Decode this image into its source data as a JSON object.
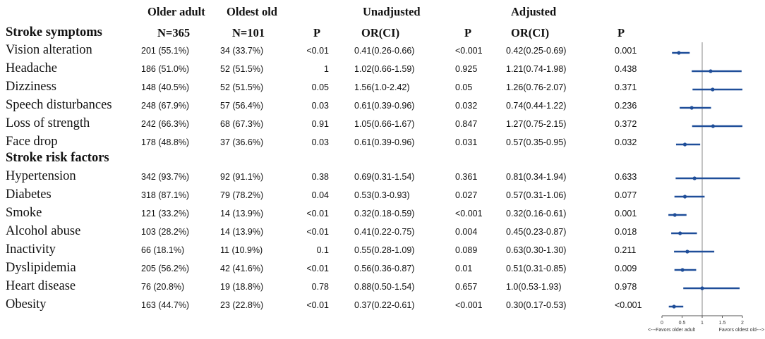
{
  "headers": {
    "older_adult": "Older adult",
    "oldest_old": "Oldest old",
    "unadjusted": "Unadjusted",
    "adjusted": "Adjusted",
    "n_older": "N=365",
    "n_oldest": "N=101",
    "p": "P",
    "or_ci": "OR(CI)",
    "p2": "P",
    "or_ci2": "OR(CI)",
    "p3": "P"
  },
  "sections": {
    "symptoms": "Stroke symptoms",
    "risk": "Stroke risk factors"
  },
  "rows": [
    {
      "label": "Vision alteration",
      "older": "201 (55.1%)",
      "oldest": "34 (33.7%)",
      "p": "<0.01",
      "or_u": "0.41(0.26-0.66)",
      "p_u": "<0.001",
      "or_a": "0.42(0.25-0.69)",
      "p_a": "0.001"
    },
    {
      "label": "Headache",
      "older": "186 (51.0%)",
      "oldest": "52 (51.5%)",
      "p": "1",
      "or_u": "1.02(0.66-1.59)",
      "p_u": "0.925",
      "or_a": "1.21(0.74-1.98)",
      "p_a": "0.438"
    },
    {
      "label": "Dizziness",
      "older": "148 (40.5%)",
      "oldest": "52 (51.5%)",
      "p": "0.05",
      "or_u": "1.56(1.0-2.42)",
      "p_u": "0.05",
      "or_a": "1.26(0.76-2.07)",
      "p_a": "0.371"
    },
    {
      "label": "Speech disturbances",
      "older": "248 (67.9%)",
      "oldest": "57 (56.4%)",
      "p": "0.03",
      "or_u": "0.61(0.39-0.96)",
      "p_u": "0.032",
      "or_a": "0.74(0.44-1.22)",
      "p_a": "0.236"
    },
    {
      "label": "Loss of strength",
      "older": "242 (66.3%)",
      "oldest": "68 (67.3%)",
      "p": "0.91",
      "or_u": "1.05(0.66-1.67)",
      "p_u": "0.847",
      "or_a": "1.27(0.75-2.15)",
      "p_a": "0.372"
    },
    {
      "label": "Face drop",
      "older": "178 (48.8%)",
      "oldest": "37 (36.6%)",
      "p": "0.03",
      "or_u": "0.61(0.39-0.96)",
      "p_u": "0.031",
      "or_a": "0.57(0.35-0.95)",
      "p_a": "0.032"
    },
    {
      "label": "Hypertension",
      "older": "342 (93.7%)",
      "oldest": "92 (91.1%)",
      "p": "0.38",
      "or_u": "0.69(0.31-1.54)",
      "p_u": "0.361",
      "or_a": "0.81(0.34-1.94)",
      "p_a": "0.633"
    },
    {
      "label": "Diabetes",
      "older": "318 (87.1%)",
      "oldest": "79 (78.2%)",
      "p": "0.04",
      "or_u": "0.53(0.3-0.93)",
      "p_u": "0.027",
      "or_a": "0.57(0.31-1.06)",
      "p_a": "0.077"
    },
    {
      "label": "Smoke",
      "older": "121 (33.2%)",
      "oldest": "14 (13.9%)",
      "p": "<0.01",
      "or_u": "0.32(0.18-0.59)",
      "p_u": "<0.001",
      "or_a": "0.32(0.16-0.61)",
      "p_a": "0.001"
    },
    {
      "label": "Alcohol abuse",
      "older": "103 (28.2%)",
      "oldest": "14 (13.9%)",
      "p": "<0.01",
      "or_u": "0.41(0.22-0.75)",
      "p_u": "0.004",
      "or_a": "0.45(0.23-0.87)",
      "p_a": "0.018"
    },
    {
      "label": "Inactivity",
      "older": "66 (18.1%)",
      "oldest": "11 (10.9%)",
      "p": "0.1",
      "or_u": "0.55(0.28-1.09)",
      "p_u": "0.089",
      "or_a": "0.63(0.30-1.30)",
      "p_a": "0.211"
    },
    {
      "label": "Dyslipidemia",
      "older": "205 (56.2%)",
      "oldest": "42 (41.6%)",
      "p": "<0.01",
      "or_u": "0.56(0.36-0.87)",
      "p_u": "0.01",
      "or_a": "0.51(0.31-0.85)",
      "p_a": "0.009"
    },
    {
      "label": "Heart disease",
      "older": "76 (20.8%)",
      "oldest": "19 (18.8%)",
      "p": "0.78",
      "or_u": "0.88(0.50-1.54)",
      "p_u": "0.657",
      "or_a": "1.0(0.53-1.93)",
      "p_a": "0.978"
    },
    {
      "label": "Obesity",
      "older": "163 (44.7%)",
      "oldest": "23 (22.8%)",
      "p": "<0.01",
      "or_u": "0.37(0.22-0.61)",
      "p_u": "<0.001",
      "or_a": "0.30(0.17-0.53)",
      "p_a": "<0.001"
    }
  ],
  "chart_data": {
    "type": "scatter",
    "chart_kind": "forest plot",
    "series_color": "#1f4e99",
    "reference_line": 1,
    "xlim": [
      0,
      2
    ],
    "x_ticks": [
      "0",
      "0.5",
      "1",
      "1.5",
      "2"
    ],
    "x_tick_values": [
      0,
      0.5,
      1,
      1.5,
      2
    ],
    "footer_left": "<---Favors older adult",
    "footer_right": "Favors oldest old--->",
    "points": [
      {
        "label": "Vision alteration",
        "or": 0.42,
        "lo": 0.25,
        "hi": 0.69
      },
      {
        "label": "Headache",
        "or": 1.21,
        "lo": 0.74,
        "hi": 1.98
      },
      {
        "label": "Dizziness",
        "or": 1.26,
        "lo": 0.76,
        "hi": 2.07
      },
      {
        "label": "Speech disturbances",
        "or": 0.74,
        "lo": 0.44,
        "hi": 1.22
      },
      {
        "label": "Loss of strength",
        "or": 1.27,
        "lo": 0.75,
        "hi": 2.15
      },
      {
        "label": "Face drop",
        "or": 0.57,
        "lo": 0.35,
        "hi": 0.95
      },
      {
        "label": "Hypertension",
        "or": 0.81,
        "lo": 0.34,
        "hi": 1.94
      },
      {
        "label": "Diabetes",
        "or": 0.57,
        "lo": 0.31,
        "hi": 1.06
      },
      {
        "label": "Smoke",
        "or": 0.32,
        "lo": 0.16,
        "hi": 0.61
      },
      {
        "label": "Alcohol abuse",
        "or": 0.45,
        "lo": 0.23,
        "hi": 0.87
      },
      {
        "label": "Inactivity",
        "or": 0.63,
        "lo": 0.3,
        "hi": 1.3
      },
      {
        "label": "Dyslipidemia",
        "or": 0.51,
        "lo": 0.31,
        "hi": 0.85
      },
      {
        "label": "Heart disease",
        "or": 1.0,
        "lo": 0.53,
        "hi": 1.93
      },
      {
        "label": "Obesity",
        "or": 0.3,
        "lo": 0.17,
        "hi": 0.53
      }
    ]
  }
}
